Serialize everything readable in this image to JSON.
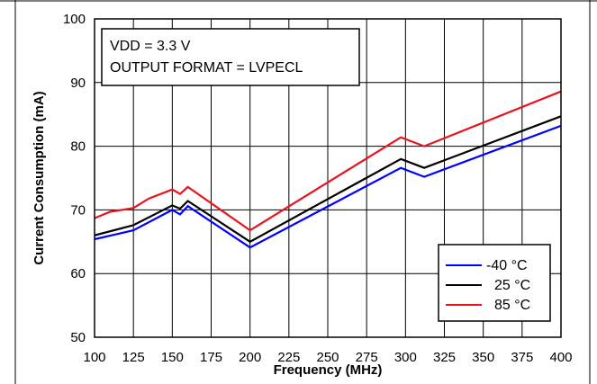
{
  "chart_data": {
    "type": "line",
    "title": "",
    "xlabel": "Frequency (MHz)",
    "ylabel": "Current Consumption (mA)",
    "xlim": [
      100,
      400
    ],
    "ylim": [
      50,
      100
    ],
    "xticks": [
      "100",
      "125",
      "150",
      "175",
      "200",
      "225",
      "250",
      "275",
      "300",
      "325",
      "350",
      "375",
      "400"
    ],
    "yticks": [
      "50",
      "60",
      "70",
      "80",
      "90",
      "100"
    ],
    "grid": true,
    "legend_position": "bottom-right",
    "annotation": [
      "VDD = 3.3 V",
      "OUTPUT FORMAT = LVPECL"
    ],
    "series": [
      {
        "name": "-40 °C",
        "color": "#0000ff",
        "x": [
          100,
          125,
          150,
          155,
          160,
          200,
          297,
          312,
          400
        ],
        "y": [
          65.4,
          66.8,
          70.0,
          69.3,
          70.6,
          64.1,
          76.6,
          75.2,
          83.2
        ]
      },
      {
        "name": "25 °C",
        "color": "#000000",
        "x": [
          100,
          125,
          150,
          155,
          160,
          200,
          297,
          312,
          400
        ],
        "y": [
          66.0,
          67.6,
          70.7,
          70.2,
          71.4,
          65.0,
          78.0,
          76.6,
          84.7
        ]
      },
      {
        "name": "85 °C",
        "color": "#e8141c",
        "x": [
          100,
          110,
          125,
          135,
          150,
          155,
          160,
          200,
          297,
          312,
          400
        ],
        "y": [
          68.7,
          69.7,
          70.3,
          71.8,
          73.2,
          72.5,
          73.6,
          66.8,
          81.4,
          80.0,
          88.6
        ]
      }
    ]
  }
}
